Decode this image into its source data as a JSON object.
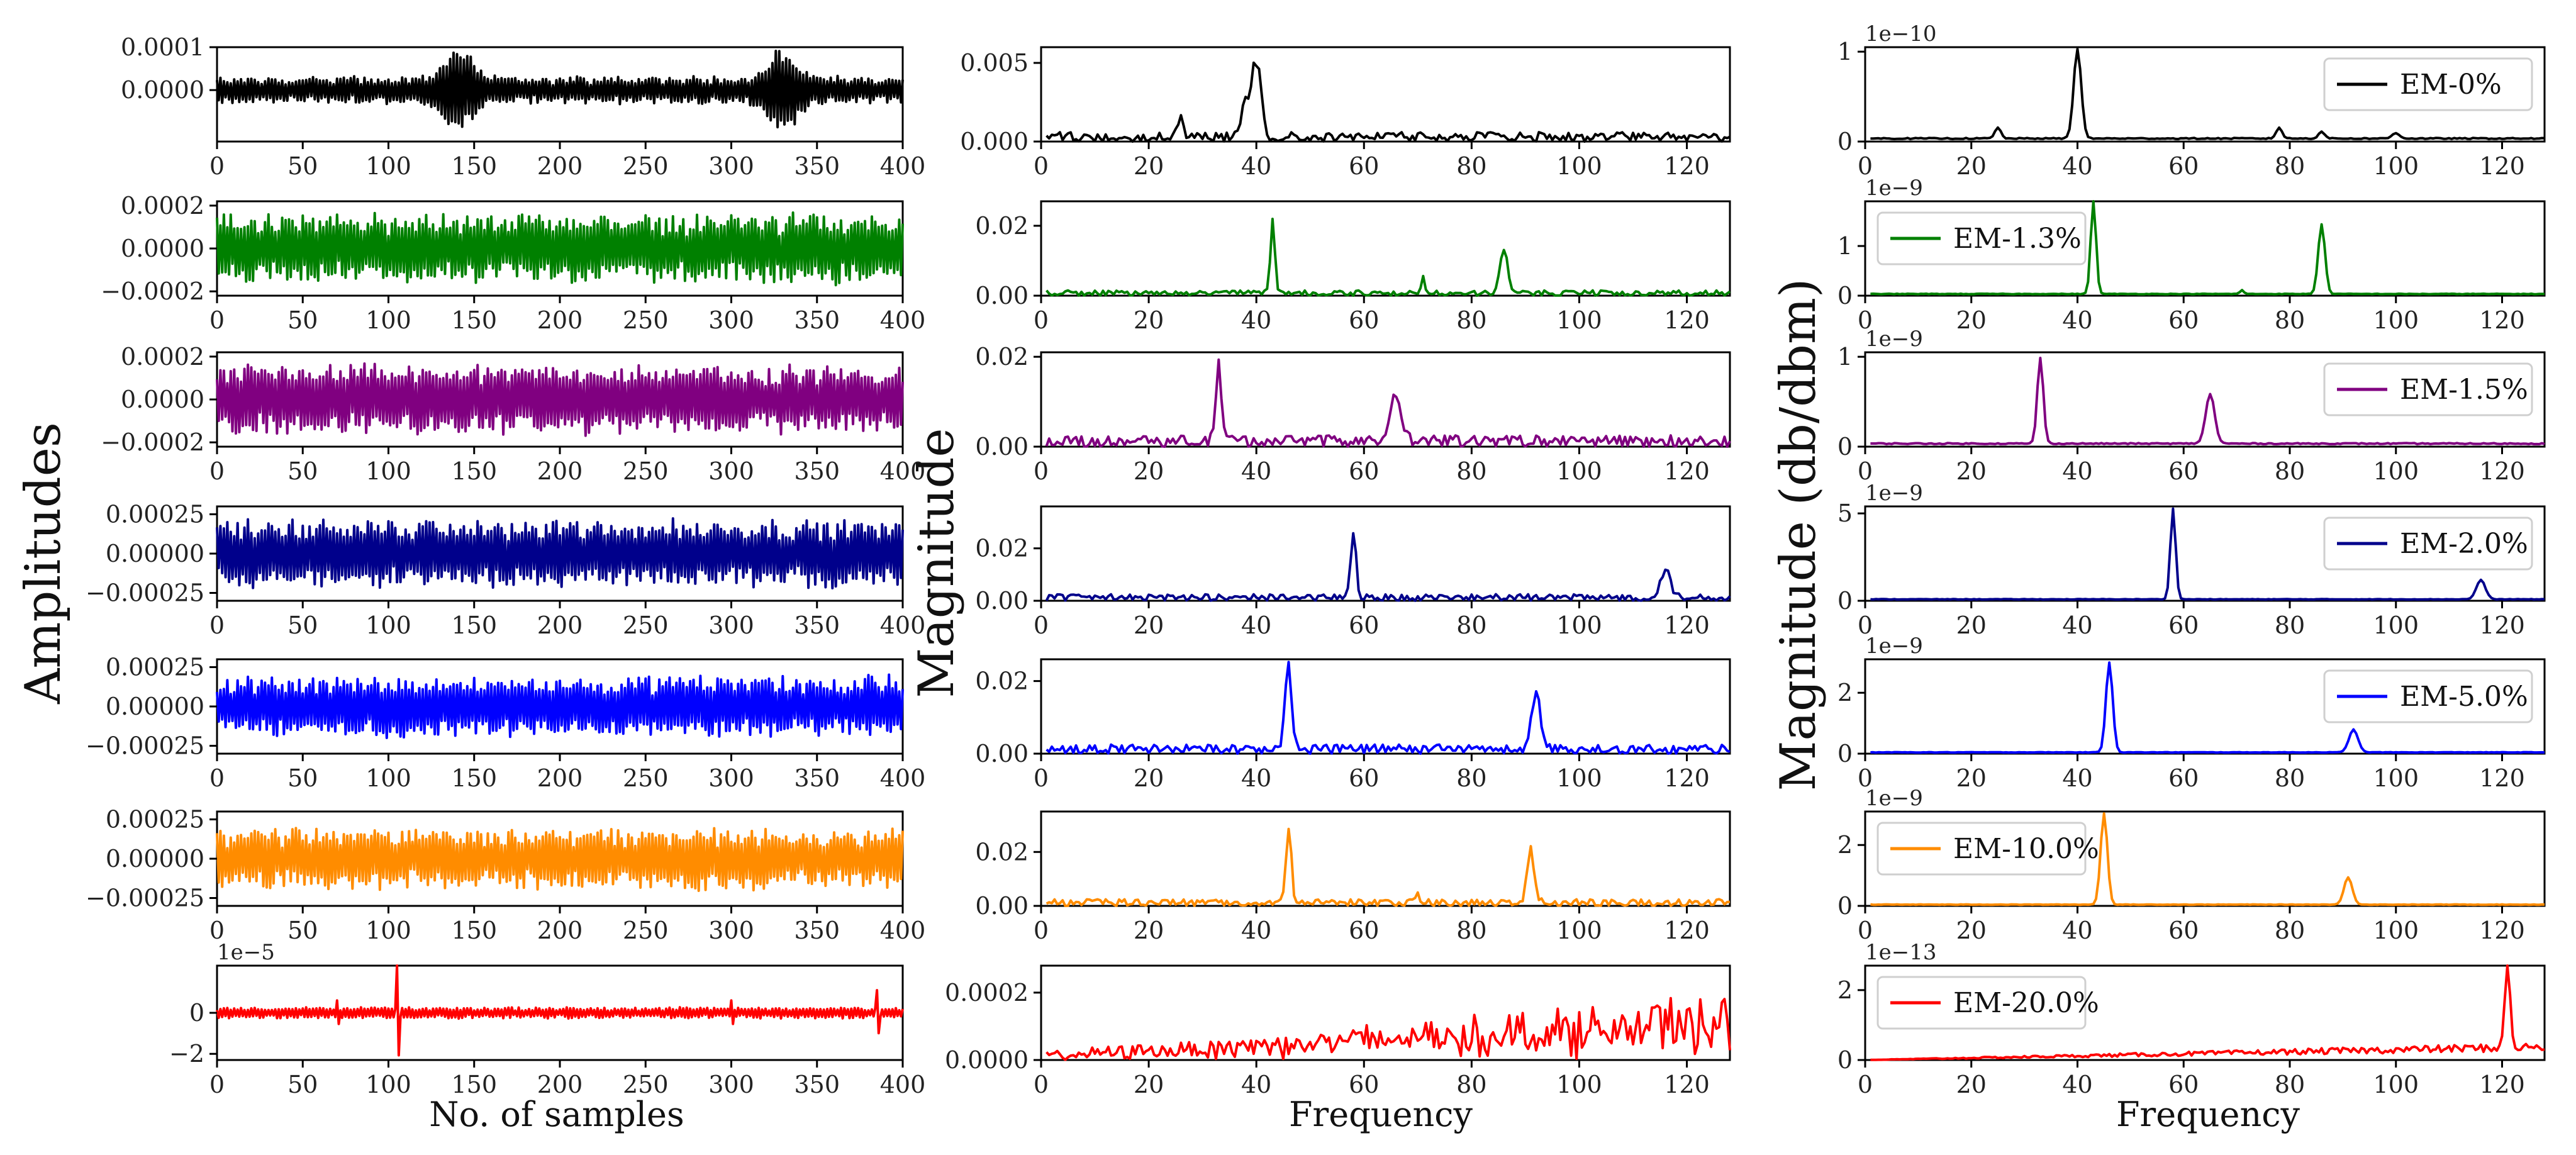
{
  "figure": {
    "col_labels": {
      "left_y": "Amplitudes",
      "mid_y": "Magnitude",
      "right_y": "Magnitude (db/dbm)",
      "left_x": "No. of samples",
      "mid_x": "Frequency",
      "right_x": "Frequency"
    }
  },
  "chart_data": [
    {
      "type": "line",
      "title": "",
      "column": "time-domain",
      "xlabel": "No. of samples",
      "ylabel": "Amplitudes",
      "x_range": [
        0,
        400
      ],
      "x_ticks": [
        "0",
        "50",
        "100",
        "150",
        "200",
        "250",
        "300",
        "350",
        "400"
      ],
      "rows": [
        {
          "color": "#000000",
          "ylim": [
            -0.00012,
            0.0001
          ],
          "y_ticks": [
            {
              "v": 0.0001,
              "t": "0.0001"
            },
            {
              "v": 0.0,
              "t": "0.0000"
            }
          ],
          "offset_text": "",
          "amplitude": 3e-05,
          "bursts": [
            {
              "center": 140,
              "width": 12,
              "amp": 7e-05
            },
            {
              "center": 330,
              "width": 12,
              "amp": 7e-05
            }
          ],
          "spikes": []
        },
        {
          "color": "#008000",
          "ylim": [
            -0.00022,
            0.00022
          ],
          "y_ticks": [
            {
              "v": 0.0002,
              "t": "0.0002"
            },
            {
              "v": 0.0,
              "t": "0.0000"
            },
            {
              "v": -0.0002,
              "t": "−0.0002"
            }
          ],
          "offset_text": "",
          "amplitude": 0.00015,
          "bursts": [],
          "spikes": []
        },
        {
          "color": "#800080",
          "ylim": [
            -0.00022,
            0.00022
          ],
          "y_ticks": [
            {
              "v": 0.0002,
              "t": "0.0002"
            },
            {
              "v": 0.0,
              "t": "0.0000"
            },
            {
              "v": -0.0002,
              "t": "−0.0002"
            }
          ],
          "offset_text": "",
          "amplitude": 0.00015,
          "bursts": [],
          "spikes": []
        },
        {
          "color": "#00008B",
          "ylim": [
            -0.0003,
            0.0003
          ],
          "y_ticks": [
            {
              "v": 0.00025,
              "t": "0.00025"
            },
            {
              "v": 0.0,
              "t": "0.00000"
            },
            {
              "v": -0.00025,
              "t": "−0.00025"
            }
          ],
          "offset_text": "",
          "amplitude": 0.0002,
          "bursts": [],
          "spikes": []
        },
        {
          "color": "#0000FF",
          "ylim": [
            -0.0003,
            0.0003
          ],
          "y_ticks": [
            {
              "v": 0.00025,
              "t": "0.00025"
            },
            {
              "v": 0.0,
              "t": "0.00000"
            },
            {
              "v": -0.00025,
              "t": "−0.00025"
            }
          ],
          "offset_text": "",
          "amplitude": 0.00018,
          "bursts": [],
          "spikes": []
        },
        {
          "color": "#FF8C00",
          "ylim": [
            -0.0003,
            0.0003
          ],
          "y_ticks": [
            {
              "v": 0.00025,
              "t": "0.00025"
            },
            {
              "v": 0.0,
              "t": "0.00000"
            },
            {
              "v": -0.00025,
              "t": "−0.00025"
            }
          ],
          "offset_text": "",
          "amplitude": 0.00018,
          "bursts": [],
          "spikes": []
        },
        {
          "color": "#FF0000",
          "ylim": [
            -2.3,
            2.3
          ],
          "y_ticks": [
            {
              "v": 0,
              "t": "0"
            },
            {
              "v": -2,
              "t": "−2"
            }
          ],
          "offset_text": "1e−5",
          "amplitude": 0.25,
          "bursts": [],
          "spikes": [
            {
              "x": 105,
              "h": 2.3
            },
            {
              "x": 385,
              "h": 1.1
            },
            {
              "x": 70,
              "h": 0.6
            },
            {
              "x": 300,
              "h": 0.6
            }
          ]
        }
      ]
    },
    {
      "type": "line",
      "title": "",
      "column": "spectrum",
      "xlabel": "Frequency",
      "ylabel": "Magnitude",
      "x_range": [
        0,
        128
      ],
      "x_ticks": [
        "0",
        "20",
        "40",
        "60",
        "80",
        "100",
        "120"
      ],
      "rows": [
        {
          "color": "#000000",
          "ylim": [
            0,
            0.006
          ],
          "y_ticks": [
            {
              "v": 0.005,
              "t": "0.005"
            },
            {
              "v": 0.0,
              "t": "0.000"
            }
          ],
          "peaks": [
            {
              "f": 40,
              "h": 0.0058,
              "w": 1.2
            },
            {
              "f": 38,
              "h": 0.0025,
              "w": 1.0
            },
            {
              "f": 26,
              "h": 0.0015,
              "w": 0.8
            }
          ],
          "noise": 0.0006
        },
        {
          "color": "#008000",
          "ylim": [
            0,
            0.027
          ],
          "y_ticks": [
            {
              "v": 0.02,
              "t": "0.02"
            },
            {
              "v": 0.0,
              "t": "0.00"
            }
          ],
          "peaks": [
            {
              "f": 43,
              "h": 0.026,
              "w": 0.6
            },
            {
              "f": 86,
              "h": 0.015,
              "w": 1.0
            },
            {
              "f": 71,
              "h": 0.005,
              "w": 0.4
            }
          ],
          "noise": 0.0015
        },
        {
          "color": "#800080",
          "ylim": [
            0,
            0.021
          ],
          "y_ticks": [
            {
              "v": 0.02,
              "t": "0.02"
            },
            {
              "v": 0.0,
              "t": "0.00"
            }
          ],
          "peaks": [
            {
              "f": 33,
              "h": 0.019,
              "w": 0.8
            },
            {
              "f": 66,
              "h": 0.011,
              "w": 1.5
            }
          ],
          "noise": 0.0025
        },
        {
          "color": "#00008B",
          "ylim": [
            0,
            0.036
          ],
          "y_ticks": [
            {
              "v": 0.02,
              "t": "0.02"
            },
            {
              "v": 0.0,
              "t": "0.00"
            }
          ],
          "peaks": [
            {
              "f": 58,
              "h": 0.033,
              "w": 0.7
            },
            {
              "f": 116,
              "h": 0.013,
              "w": 1.3
            }
          ],
          "noise": 0.0025
        },
        {
          "color": "#0000FF",
          "ylim": [
            0,
            0.026
          ],
          "y_ticks": [
            {
              "v": 0.02,
              "t": "0.02"
            },
            {
              "v": 0.0,
              "t": "0.00"
            }
          ],
          "peaks": [
            {
              "f": 46,
              "h": 0.025,
              "w": 0.9
            },
            {
              "f": 92,
              "h": 0.016,
              "w": 1.2
            }
          ],
          "noise": 0.0025
        },
        {
          "color": "#FF8C00",
          "ylim": [
            0,
            0.035
          ],
          "y_ticks": [
            {
              "v": 0.02,
              "t": "0.02"
            },
            {
              "v": 0.0,
              "t": "0.00"
            }
          ],
          "peaks": [
            {
              "f": 46,
              "h": 0.033,
              "w": 0.7
            },
            {
              "f": 91,
              "h": 0.021,
              "w": 1.0
            },
            {
              "f": 70,
              "h": 0.005,
              "w": 0.4
            }
          ],
          "noise": 0.0025
        },
        {
          "color": "#FF0000",
          "ylim": [
            0,
            0.00028
          ],
          "y_ticks": [
            {
              "v": 0.0002,
              "t": "0.0002"
            },
            {
              "v": 0.0,
              "t": "0.0000"
            }
          ],
          "peaks": [],
          "noise": 0.00012,
          "trend": true
        }
      ]
    },
    {
      "type": "line",
      "title": "",
      "column": "smoothed-spectrum",
      "xlabel": "Frequency",
      "ylabel": "Magnitude (db/dbm)",
      "x_range": [
        0,
        128
      ],
      "x_ticks": [
        "0",
        "20",
        "40",
        "60",
        "80",
        "100",
        "120"
      ],
      "rows": [
        {
          "color": "#000000",
          "legend": "EM-0%",
          "legend_pos": "top-right",
          "ylim": [
            0,
            1.05
          ],
          "y_ticks": [
            {
              "v": 1,
              "t": "1"
            },
            {
              "v": 0,
              "t": "0"
            }
          ],
          "offset_text": "1e−10",
          "peaks": [
            {
              "f": 40,
              "h": 1.0,
              "w": 1.0
            },
            {
              "f": 25,
              "h": 0.12,
              "w": 0.8
            },
            {
              "f": 78,
              "h": 0.12,
              "w": 0.8
            },
            {
              "f": 86,
              "h": 0.08,
              "w": 0.8
            },
            {
              "f": 100,
              "h": 0.06,
              "w": 1.0
            }
          ],
          "base": 0.04
        },
        {
          "color": "#008000",
          "legend": "EM-1.3%",
          "legend_pos": "top-left",
          "ylim": [
            0,
            1.9
          ],
          "y_ticks": [
            {
              "v": 1,
              "t": "1"
            },
            {
              "v": 0,
              "t": "0"
            }
          ],
          "offset_text": "1e−9",
          "peaks": [
            {
              "f": 43,
              "h": 1.9,
              "w": 0.7
            },
            {
              "f": 86,
              "h": 1.4,
              "w": 0.9
            },
            {
              "f": 71,
              "h": 0.08,
              "w": 0.5
            }
          ],
          "base": 0.04
        },
        {
          "color": "#800080",
          "legend": "EM-1.5%",
          "legend_pos": "top-right",
          "ylim": [
            0,
            1.05
          ],
          "y_ticks": [
            {
              "v": 1,
              "t": "1"
            },
            {
              "v": 0,
              "t": "0"
            }
          ],
          "offset_text": "1e−9",
          "peaks": [
            {
              "f": 33,
              "h": 0.95,
              "w": 0.8
            },
            {
              "f": 65,
              "h": 0.55,
              "w": 1.2
            }
          ],
          "base": 0.04
        },
        {
          "color": "#00008B",
          "legend": "EM-2.0%",
          "legend_pos": "top-right",
          "ylim": [
            0,
            5.4
          ],
          "y_ticks": [
            {
              "v": 5,
              "t": "5"
            },
            {
              "v": 0,
              "t": "0"
            }
          ],
          "offset_text": "1e−9",
          "peaks": [
            {
              "f": 58,
              "h": 5.2,
              "w": 0.7
            },
            {
              "f": 116,
              "h": 1.1,
              "w": 1.2
            }
          ],
          "base": 0.1
        },
        {
          "color": "#0000FF",
          "legend": "EM-5.0%",
          "legend_pos": "top-right",
          "ylim": [
            0,
            3.1
          ],
          "y_ticks": [
            {
              "v": 2,
              "t": "2"
            },
            {
              "v": 0,
              "t": "0"
            }
          ],
          "offset_text": "1e−9",
          "peaks": [
            {
              "f": 46,
              "h": 2.95,
              "w": 0.9
            },
            {
              "f": 92,
              "h": 0.75,
              "w": 1.2
            }
          ],
          "base": 0.05
        },
        {
          "color": "#FF8C00",
          "legend": "EM-10.0%",
          "legend_pos": "top-left",
          "ylim": [
            0,
            3.1
          ],
          "y_ticks": [
            {
              "v": 2,
              "t": "2"
            },
            {
              "v": 0,
              "t": "0"
            }
          ],
          "offset_text": "1e−9",
          "peaks": [
            {
              "f": 45,
              "h": 3.0,
              "w": 0.9
            },
            {
              "f": 91,
              "h": 0.9,
              "w": 1.1
            }
          ],
          "base": 0.05
        },
        {
          "color": "#FF0000",
          "legend": "EM-20.0%",
          "legend_pos": "top-left",
          "ylim": [
            0,
            2.7
          ],
          "y_ticks": [
            {
              "v": 2,
              "t": "2"
            },
            {
              "v": 0,
              "t": "0"
            }
          ],
          "offset_text": "1e−13",
          "peaks": [
            {
              "f": 121,
              "h": 2.4,
              "w": 0.7
            }
          ],
          "base": 0.05,
          "trend": true
        }
      ]
    }
  ]
}
